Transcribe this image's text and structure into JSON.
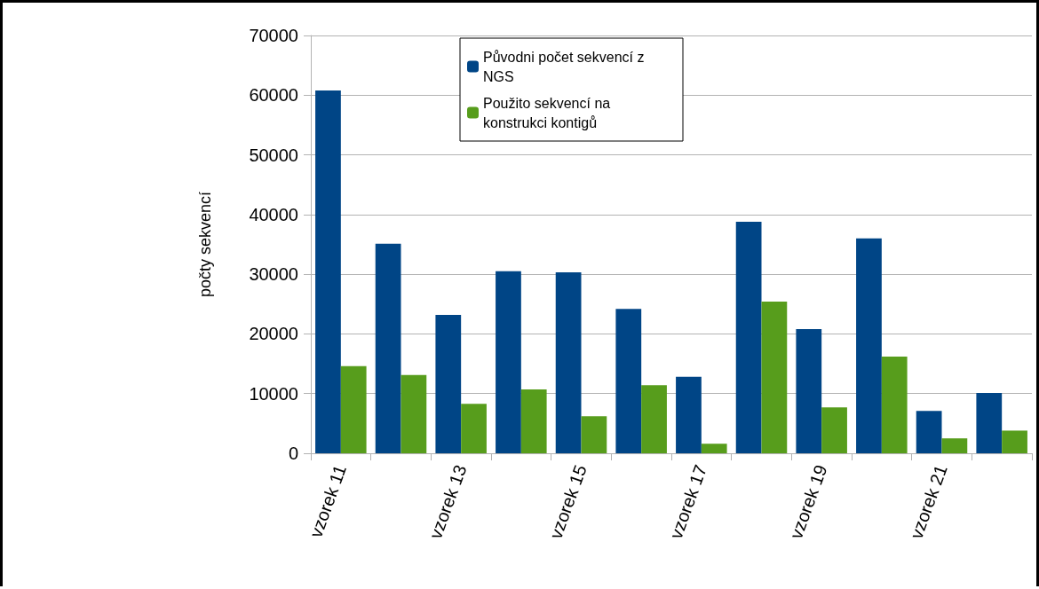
{
  "chart_data": {
    "type": "bar",
    "ylabel": "počty sekvencí",
    "categories": [
      "vzorek 11",
      null,
      "vzorek 13",
      null,
      "vzorek 15",
      null,
      "vzorek 17",
      null,
      "vzorek 19",
      null,
      "vzorek 21",
      null
    ],
    "series": [
      {
        "name": "Původni počet sekvencí z NGS",
        "color": "#004586",
        "values": [
          60800,
          35100,
          23200,
          30500,
          30300,
          24200,
          12800,
          38800,
          20800,
          36000,
          7100,
          10100
        ]
      },
      {
        "name": "Použito sekvencí na konstrukci kontigů",
        "color": "#579d1c",
        "values": [
          14600,
          13100,
          8300,
          10700,
          6200,
          11400,
          1600,
          25400,
          7700,
          16200,
          2500,
          3800
        ]
      }
    ],
    "ylim": [
      0,
      70000
    ],
    "yticks": [
      0,
      10000,
      20000,
      30000,
      40000,
      50000,
      60000,
      70000
    ],
    "grid": "y",
    "legend": "top"
  }
}
